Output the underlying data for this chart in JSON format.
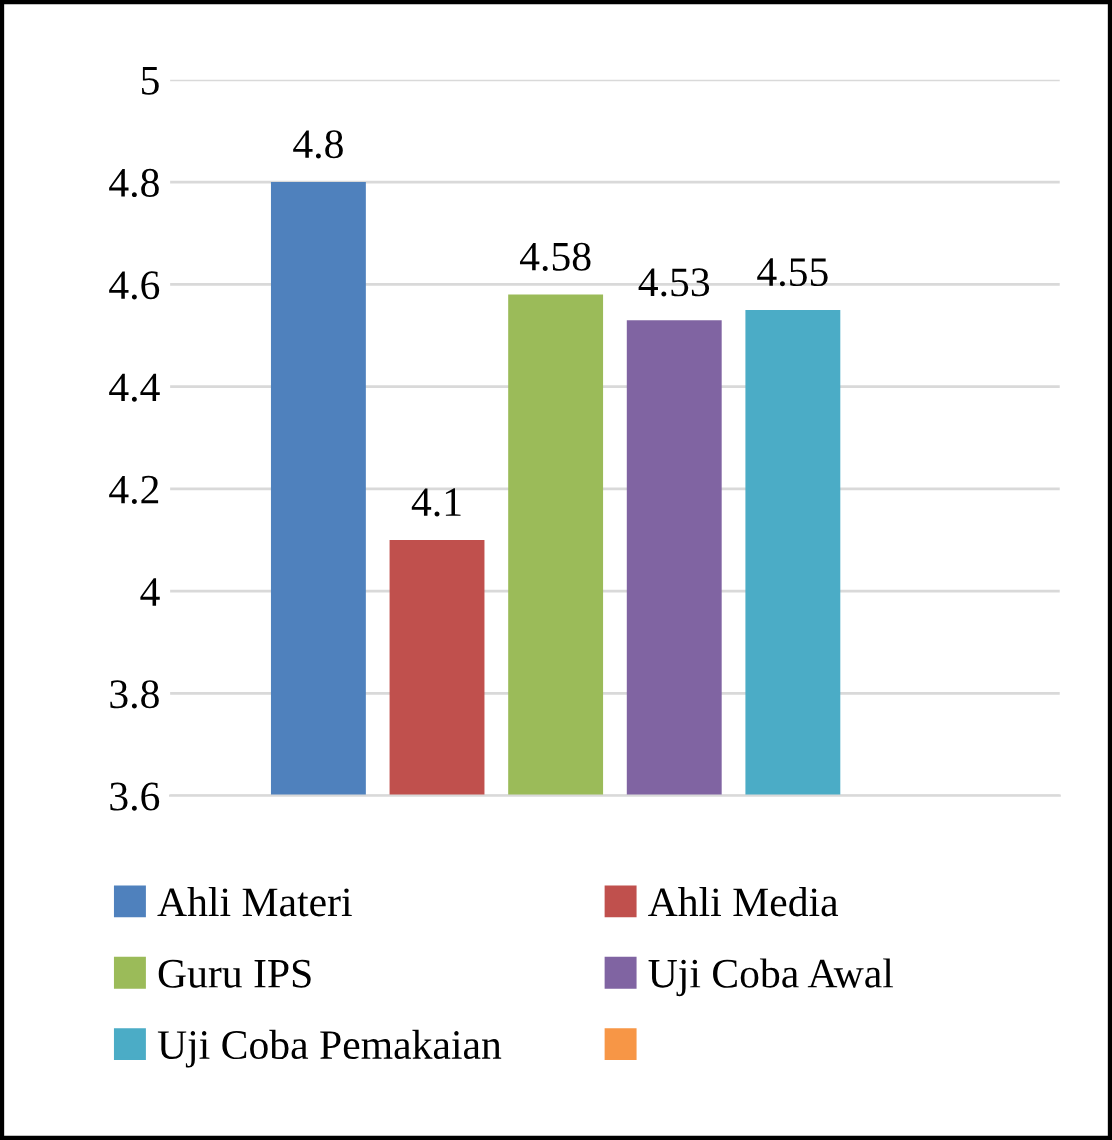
{
  "chart_data": {
    "type": "bar",
    "categories": [
      null
    ],
    "series": [
      {
        "name": "Ahli Materi",
        "color": "#4f81bd",
        "values": [
          4.8
        ]
      },
      {
        "name": "Ahli Media",
        "color": "#c0504d",
        "values": [
          4.1
        ]
      },
      {
        "name": "Guru IPS",
        "color": "#9bbb59",
        "values": [
          4.58
        ]
      },
      {
        "name": "Uji Coba Awal",
        "color": "#8064a2",
        "values": [
          4.53
        ]
      },
      {
        "name": "Uji Coba Pemakaian",
        "color": "#4bacc6",
        "values": [
          4.55
        ]
      },
      {
        "color": "#f79646",
        "values": [
          null
        ]
      }
    ],
    "ylim": [
      3.6,
      5
    ],
    "yticks": [
      3.6,
      3.8,
      4,
      4.2,
      4.4,
      4.6,
      4.8,
      5
    ],
    "grid": "y",
    "data_labels": true,
    "legend": "bottom"
  }
}
